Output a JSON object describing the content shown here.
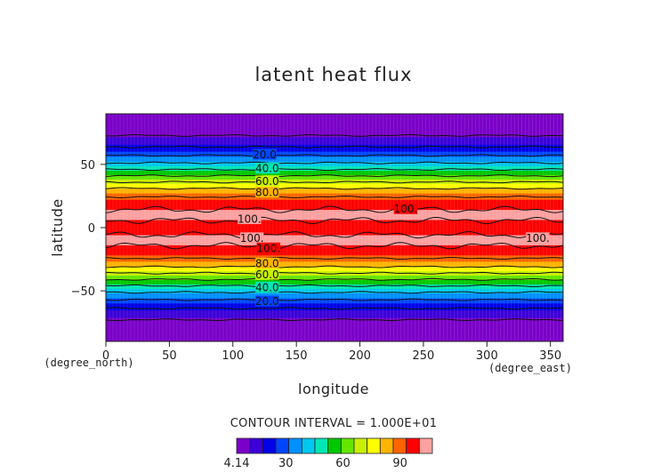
{
  "chart_data": {
    "type": "heatmap",
    "subtype": "filled-contour",
    "title": "latent heat flux",
    "xlabel": "longitude",
    "ylabel": "latitude",
    "x_units": "(degree_east)",
    "y_units": "(degree_north)",
    "xlim": [
      0,
      360
    ],
    "ylim": [
      -90,
      90
    ],
    "xticks": [
      0,
      50,
      100,
      150,
      200,
      250,
      300,
      350
    ],
    "yticks": [
      -50,
      0,
      50
    ],
    "grid": false,
    "contour_interval_label": "CONTOUR INTERVAL = 1.000E+01",
    "zonal_profile": {
      "lat": [
        -90,
        -80,
        -70,
        -60,
        -50,
        -40,
        -30,
        -20,
        -10,
        0,
        10,
        20,
        30,
        40,
        50,
        60,
        70,
        80,
        90
      ],
      "value": [
        0,
        5,
        12,
        25,
        42,
        62,
        82,
        96,
        103,
        96,
        103,
        96,
        82,
        62,
        42,
        25,
        12,
        5,
        0
      ]
    },
    "contour_labels": [
      {
        "text": "20.0",
        "lon": 125,
        "lat": 58
      },
      {
        "text": "40.0",
        "lon": 127,
        "lat": 47
      },
      {
        "text": "60.0",
        "lon": 127,
        "lat": 37
      },
      {
        "text": "80.0",
        "lon": 127,
        "lat": 28
      },
      {
        "text": "100.",
        "lon": 236,
        "lat": 15
      },
      {
        "text": "100.",
        "lon": 113,
        "lat": 7
      },
      {
        "text": "100.",
        "lon": 115,
        "lat": -8
      },
      {
        "text": "100.",
        "lon": 128,
        "lat": -16
      },
      {
        "text": "100.",
        "lon": 340,
        "lat": -8
      },
      {
        "text": "80.0",
        "lon": 127,
        "lat": -28
      },
      {
        "text": "60.0",
        "lon": 127,
        "lat": -37
      },
      {
        "text": "40.0",
        "lon": 127,
        "lat": -47
      },
      {
        "text": "20.0",
        "lon": 127,
        "lat": -58
      }
    ],
    "colorbar": {
      "min": 4.14,
      "max": 107,
      "ticks": [
        {
          "label": "4.14",
          "value": 4.14
        },
        {
          "label": "30",
          "value": 30
        },
        {
          "label": "60",
          "value": 60
        },
        {
          "label": "90",
          "value": 90
        }
      ],
      "colors": [
        "#7a00c8",
        "#3c00d8",
        "#0000e6",
        "#0046ff",
        "#0090ff",
        "#00c8f0",
        "#00e6b4",
        "#00c800",
        "#64e600",
        "#c8f000",
        "#ffff00",
        "#ffb400",
        "#ff6400",
        "#ff0000",
        "#ffa0a0"
      ]
    }
  }
}
